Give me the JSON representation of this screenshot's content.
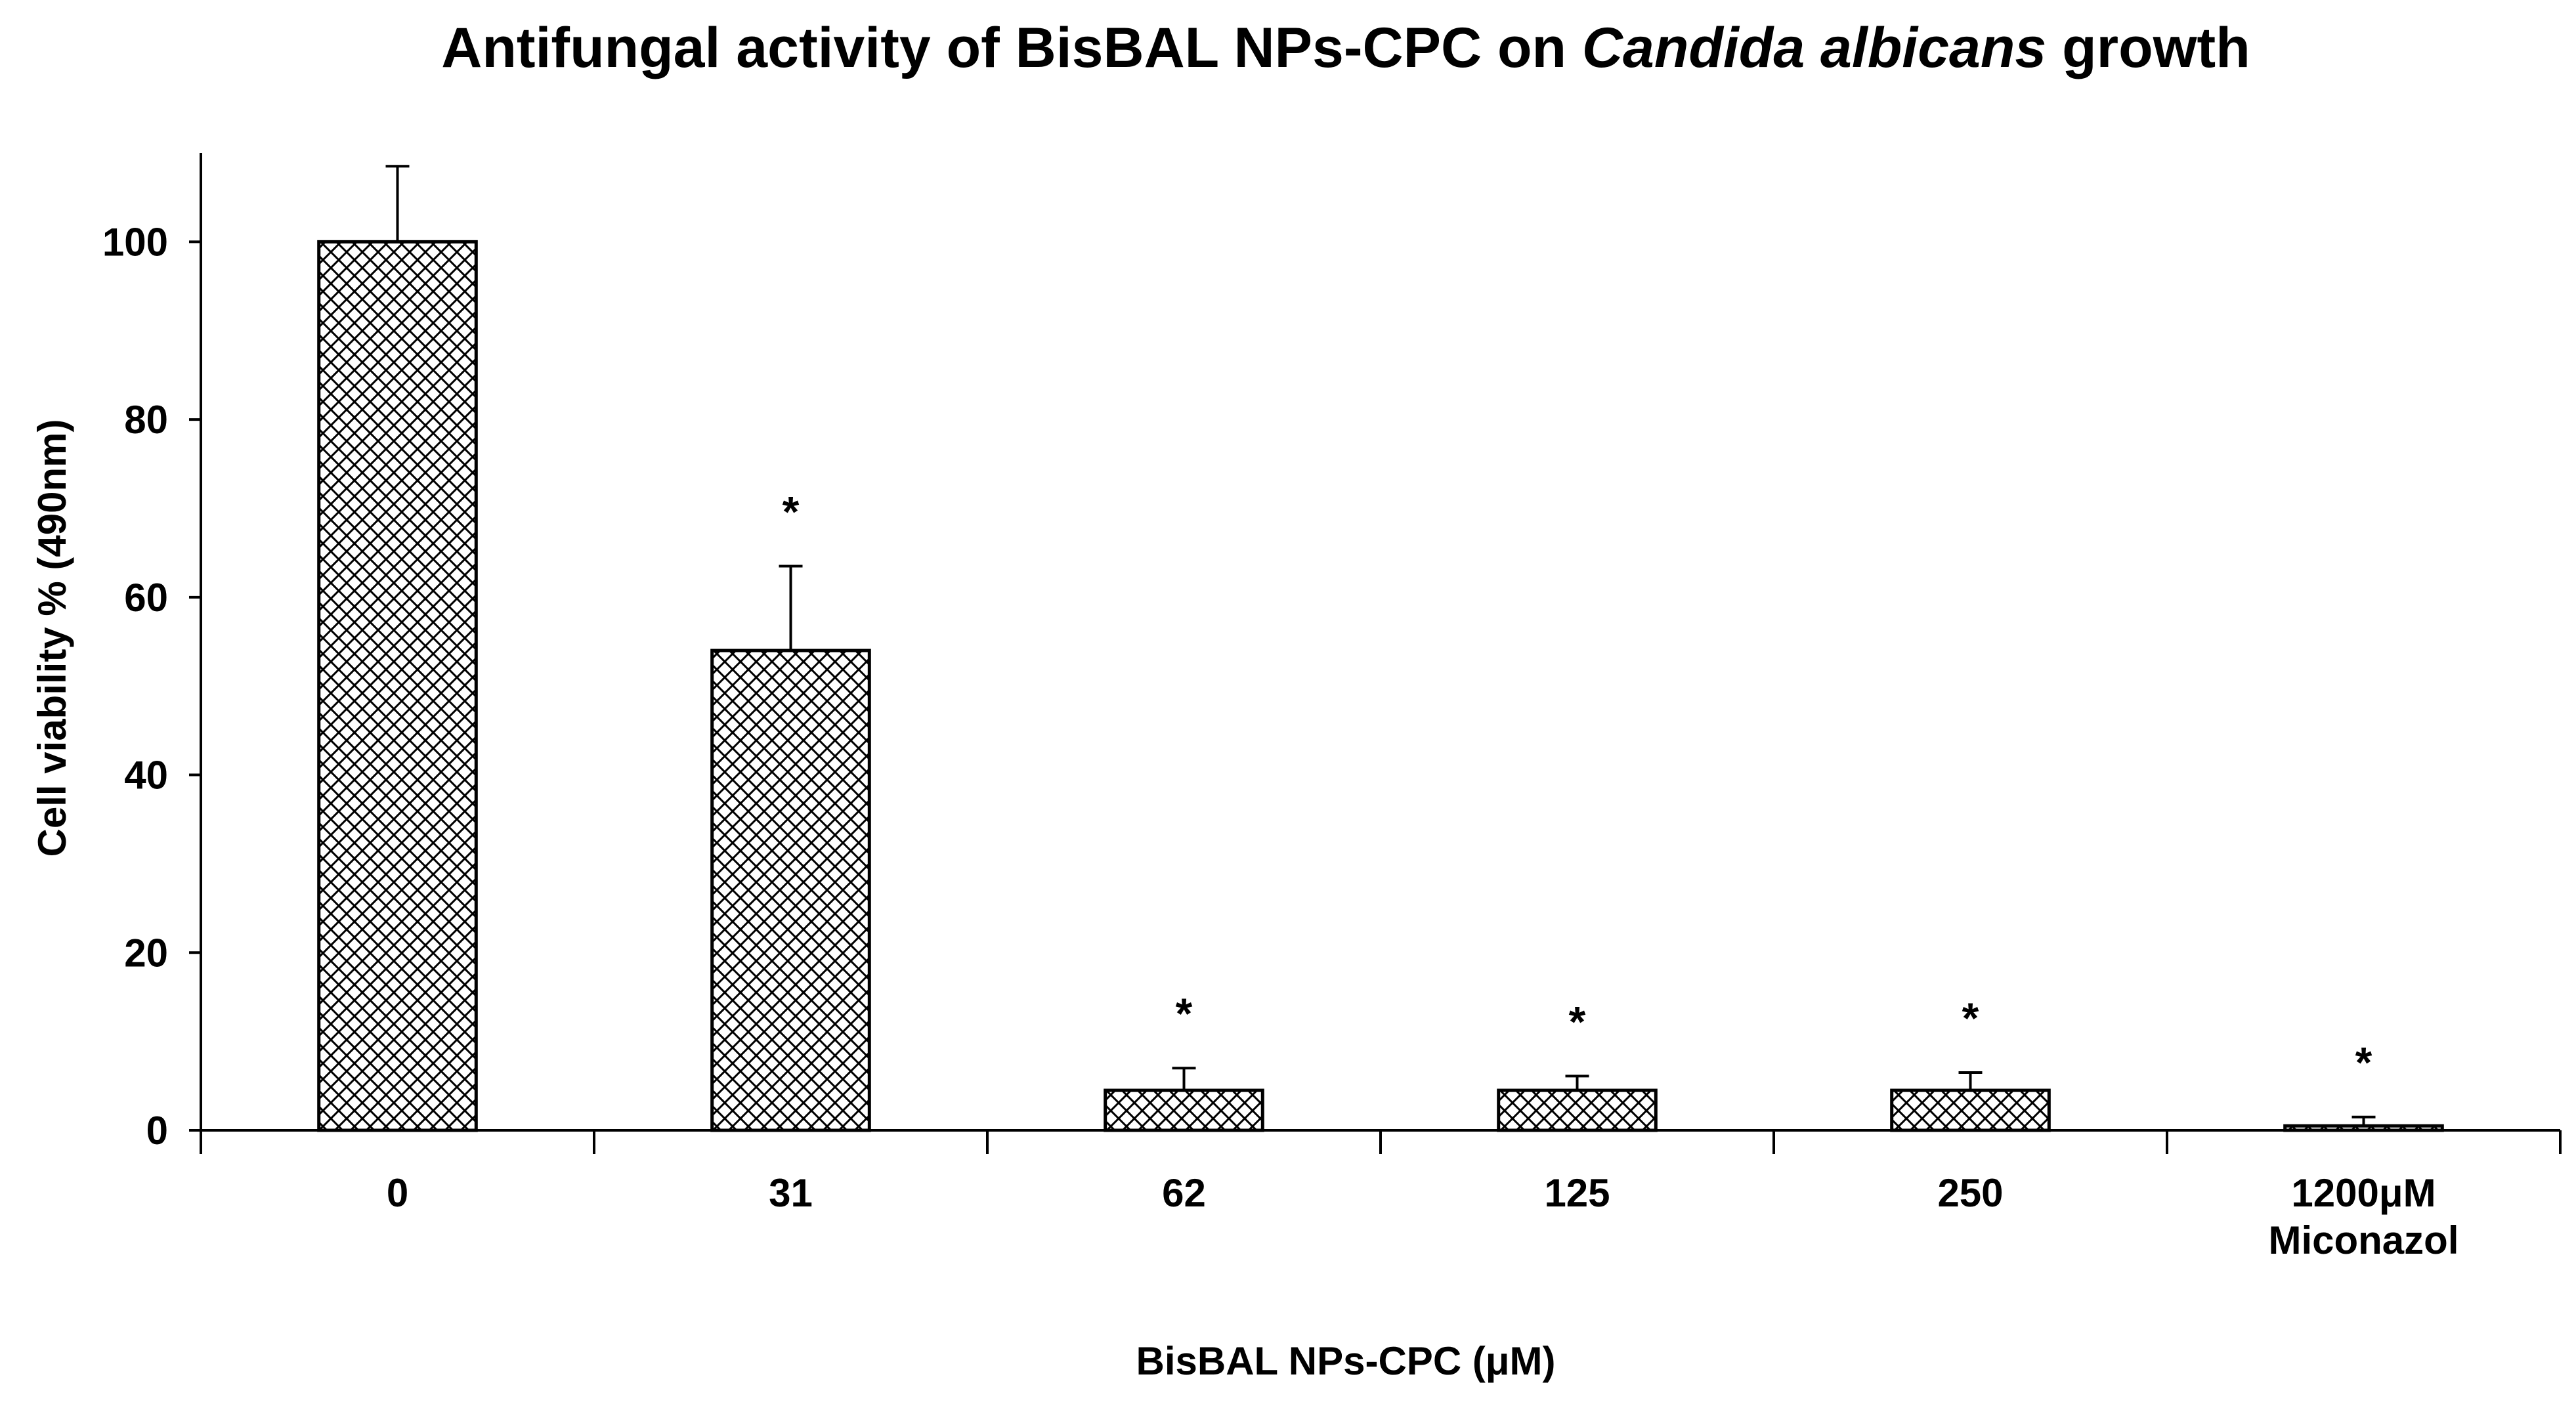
{
  "chart_data": {
    "type": "bar",
    "title": {
      "prefix": "Antifungal activity of BisBAL NPs-CPC on ",
      "italic": "Candida albicans",
      "suffix": " growth"
    },
    "xlabel": "BisBAL NPs-CPC (μM)",
    "ylabel": "Cell viability % (490nm)",
    "ylim": [
      0,
      110
    ],
    "yticks": [
      0,
      20,
      40,
      60,
      80,
      100
    ],
    "ytick_labels": [
      "0",
      "20",
      "40",
      "60",
      "80",
      "100"
    ],
    "categories": [
      [
        "0"
      ],
      [
        "31"
      ],
      [
        "62"
      ],
      [
        "125"
      ],
      [
        "250"
      ],
      [
        "1200μM",
        "Miconazol"
      ]
    ],
    "values": [
      100,
      54,
      4.5,
      4.5,
      4.5,
      0.5
    ],
    "errors": [
      8.5,
      9.5,
      2.5,
      1.6,
      2.0,
      1.0
    ],
    "significance": [
      "",
      "*",
      "*",
      "*",
      "*",
      "*"
    ],
    "bar_fill": "crosshatch",
    "colors": {
      "bar_stroke": "#000000",
      "hatch": "#000000",
      "background": "#ffffff"
    }
  }
}
